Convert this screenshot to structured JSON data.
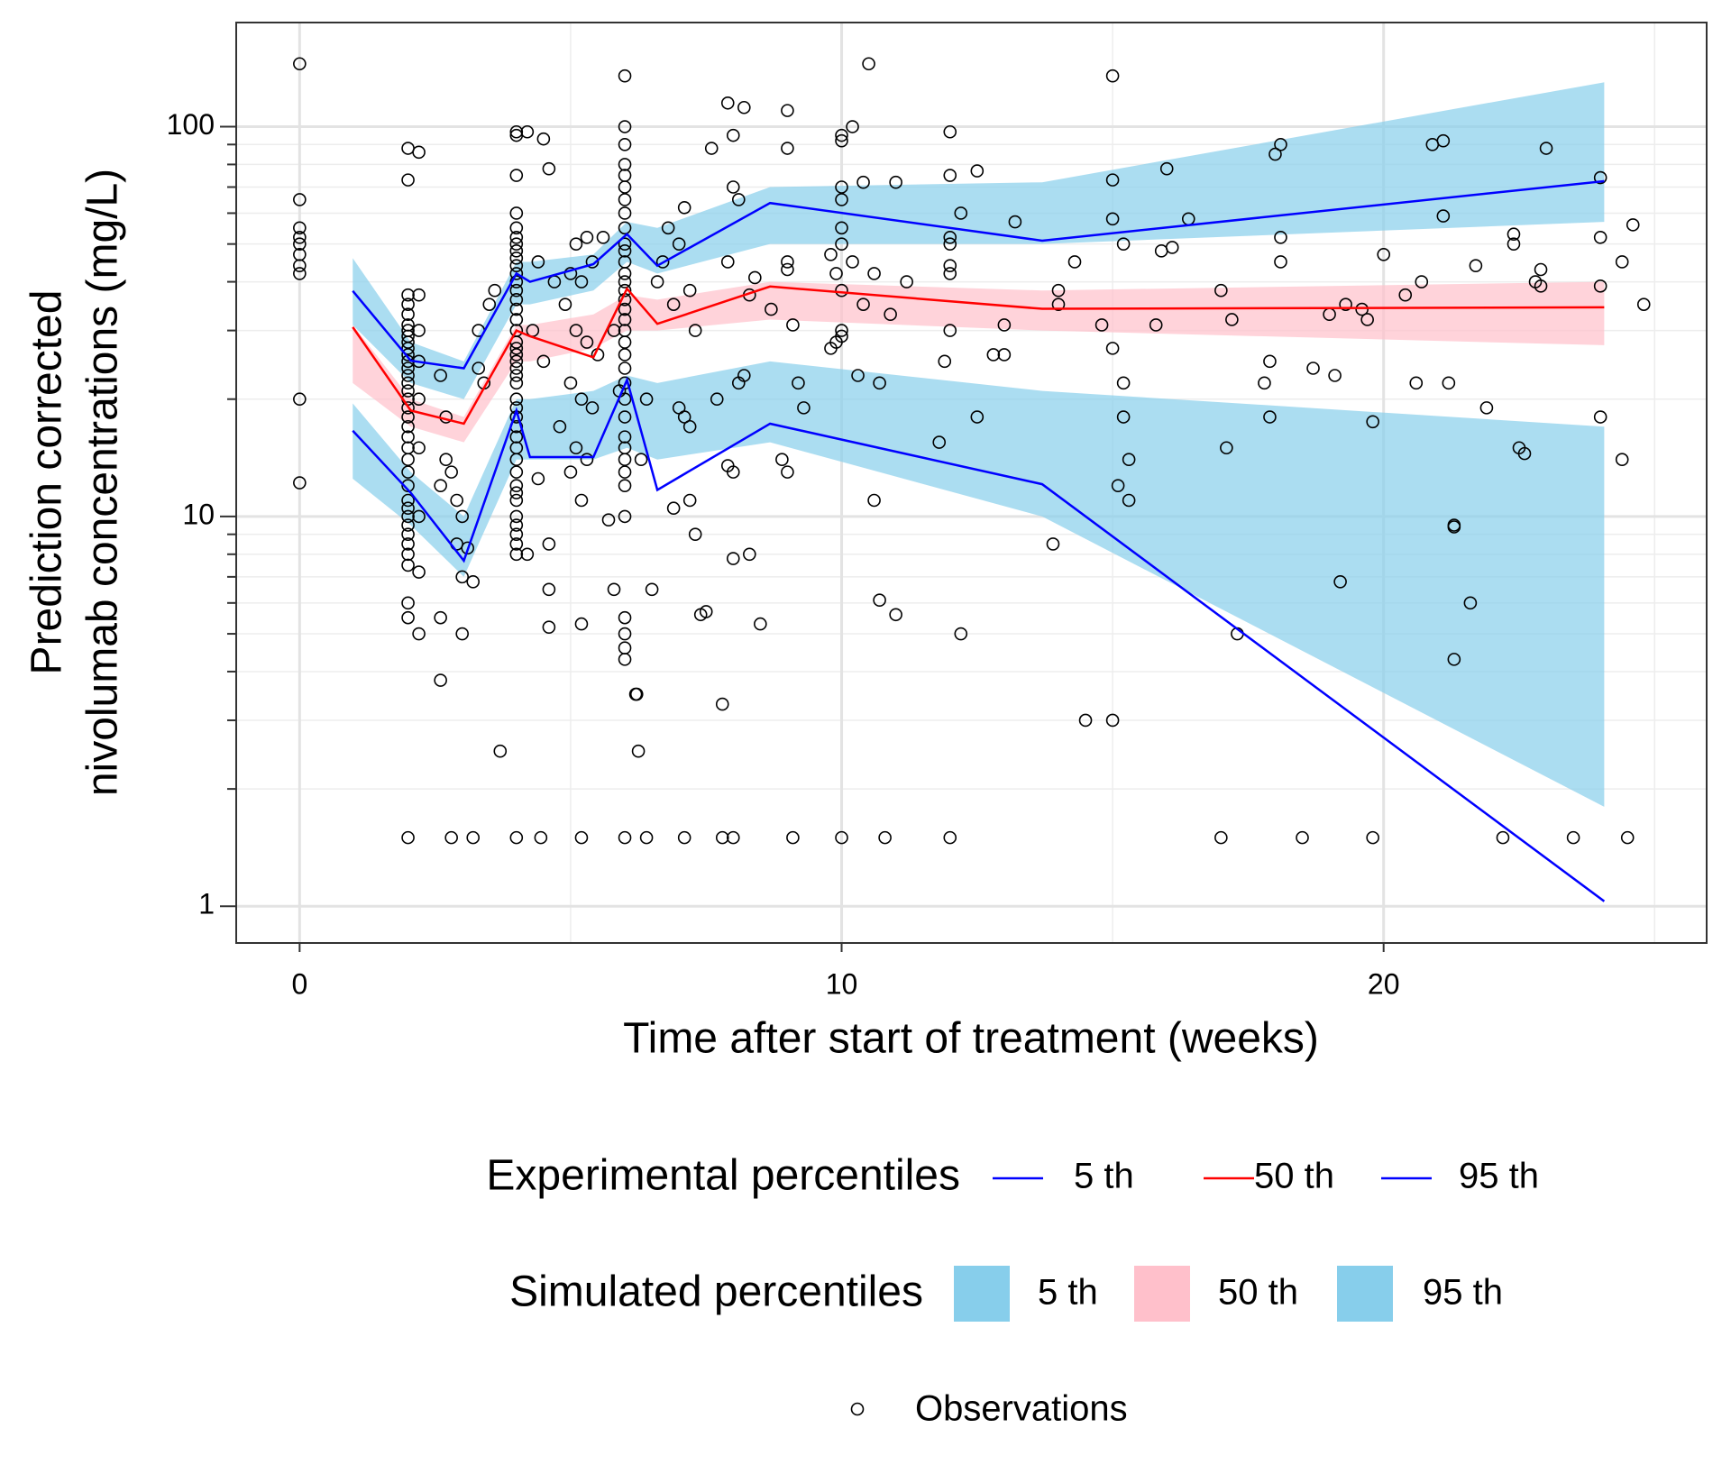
{
  "chart_data": {
    "type": "line",
    "xlabel": "Time after start of treatment (weeks)",
    "ylabel": [
      "Prediction corrected",
      "nivolumab concentrations (mg/L)"
    ],
    "xlim": [
      -1.17,
      25.96
    ],
    "ylim": [
      0.805,
      185
    ],
    "log_y": true,
    "grid": true,
    "xticks": [
      0,
      10,
      20
    ],
    "xminor_ticks": [
      5,
      15,
      25
    ],
    "yticks": [
      1,
      10,
      100
    ],
    "yminor_ticks": [
      2,
      3,
      4,
      5,
      6,
      7,
      8,
      9,
      20,
      30,
      40,
      50,
      60,
      70,
      80,
      90
    ],
    "bins_x": [
      0.98,
      2.05,
      3.03,
      4.0,
      4.25,
      5.42,
      6.04,
      6.6,
      8.68,
      13.7,
      24.07
    ],
    "experimental": {
      "title": "Experimental percentiles",
      "series": [
        {
          "name": "5 th",
          "color": "#0000ff",
          "values": [
            16.6,
            11.5,
            7.7,
            18.7,
            14.2,
            14.2,
            22.4,
            11.7,
            17.3,
            12.1,
            1.03
          ]
        },
        {
          "name": "50 th",
          "color": "#ff0000",
          "values": [
            30.6,
            18.7,
            17.3,
            30,
            29,
            25.6,
            38.4,
            31.2,
            38.9,
            34.1,
            34.4
          ]
        },
        {
          "name": "95 th",
          "color": "#0000ff",
          "values": [
            37.9,
            25.1,
            24,
            42,
            40,
            44.4,
            53,
            44,
            63.7,
            51,
            72.5
          ]
        }
      ]
    },
    "simulated": {
      "title": "Simulated percentiles",
      "series": [
        {
          "name": "5 th",
          "color": "#87ceeb",
          "low": [
            12.5,
            9.5,
            7,
            14,
            14,
            14,
            15,
            14,
            15.5,
            10,
            1.8
          ],
          "high": [
            19.5,
            13,
            10,
            20,
            20,
            21,
            23,
            22,
            25,
            21,
            17
          ]
        },
        {
          "name": "50 th",
          "color": "#ffc0cb",
          "low": [
            22,
            17,
            15.5,
            25,
            25,
            27,
            30,
            30,
            32,
            30,
            27.5
          ],
          "high": [
            31,
            20,
            18,
            31,
            31,
            33,
            37,
            36,
            40,
            38,
            40
          ]
        },
        {
          "name": "95 th",
          "color": "#87ceeb",
          "low": [
            31,
            22,
            20,
            35,
            35,
            38,
            45,
            42,
            50,
            50,
            57
          ],
          "high": [
            46,
            28,
            25,
            45,
            45,
            47,
            57,
            55,
            70,
            72,
            130
          ]
        }
      ]
    },
    "observations": {
      "name": "Observations",
      "x": [
        0,
        0,
        0,
        0,
        0,
        0,
        0,
        0,
        0,
        0,
        2,
        2,
        2,
        2,
        2,
        2,
        2,
        2,
        2,
        2,
        2,
        2,
        2,
        2,
        2,
        2,
        2,
        2,
        2,
        2,
        2,
        2,
        2,
        2,
        2,
        2,
        2,
        2,
        2,
        2,
        2,
        2,
        2,
        2,
        2,
        2,
        2.2,
        2.2,
        2.2,
        2.2,
        2.2,
        2.2,
        2.2,
        2.2,
        2.2,
        2.6,
        2.7,
        2.7,
        2.6,
        2.8,
        2.9,
        3.0,
        2.9,
        3.1,
        3.0,
        3.2,
        3.0,
        2.6,
        2.8,
        3.2,
        2.6,
        3.3,
        3.5,
        3.4,
        3.7,
        3.6,
        3.3,
        4,
        4,
        4,
        4,
        4,
        4,
        4,
        4,
        4,
        4,
        4,
        4,
        4,
        4,
        4,
        4,
        4,
        4,
        4,
        4,
        4,
        4,
        4,
        4,
        4,
        4,
        4,
        4,
        4,
        4,
        4,
        4,
        4,
        4,
        4,
        4,
        4,
        4,
        4,
        4,
        4,
        4.2,
        4.5,
        4.6,
        4.4,
        4.7,
        4.3,
        4.5,
        4.4,
        4.6,
        4.2,
        4.6,
        4.6,
        4.45,
        4.8,
        4.9,
        5.0,
        5.1,
        5.3,
        5.4,
        5.2,
        5.1,
        5.3,
        5.0,
        5.2,
        5.4,
        5.1,
        5.3,
        5.0,
        5.2,
        5.2,
        5.2,
        5.6,
        5.5,
        5.8,
        5.7,
        5.9,
        5.8,
        6,
        6,
        6,
        6,
        6,
        6,
        6,
        6,
        6,
        6,
        6,
        6,
        6,
        6,
        6,
        6,
        6,
        6,
        6,
        6,
        6,
        6,
        6,
        6,
        6,
        6,
        6,
        6,
        6,
        6,
        6,
        6,
        6,
        6,
        6,
        6,
        6.2,
        6.22,
        6.25,
        6.4,
        6.3,
        6.5,
        6.4,
        6.6,
        6.7,
        6.9,
        7.0,
        6.8,
        7.1,
        7.2,
        7.3,
        7.0,
        7.1,
        7.2,
        6.9,
        7.2,
        7.3,
        7.4,
        7.5,
        7.8,
        7.1,
        7.8,
        8.0,
        7.6,
        7.9,
        8.2,
        8.0,
        8.0,
        8.1,
        7.9,
        8.3,
        8.1,
        8.2,
        8.0,
        7.9,
        8.0,
        8.3,
        8.5,
        7.7,
        8.4,
        8.7,
        9.0,
        9.0,
        9.0,
        9.0,
        9.1,
        9.2,
        9.3,
        8.9,
        9.0,
        9.1,
        10.0,
        10.0,
        10.2,
        10.0,
        10.0,
        10.0,
        10.0,
        10.2,
        9.9,
        10.0,
        10.0,
        10.0,
        9.9,
        9.8,
        10.0,
        9.8,
        10.5,
        10.4,
        10.6,
        10.4,
        10.9,
        10.3,
        10.7,
        10.6,
        10.7,
        11.0,
        10.8,
        11.0,
        11.2,
        11.8,
        12.0,
        12.0,
        12.2,
        12.0,
        12.0,
        12.0,
        12.0,
        12.0,
        11.9,
        12.2,
        12.0,
        12.5,
        12.5,
        12.8,
        13.0,
        13.0,
        13.2,
        14.0,
        14.0,
        13.9,
        14.5,
        15.0,
        15.0,
        14.3,
        15.0,
        15.0,
        15.2,
        14.8,
        15.0,
        15.2,
        15.2,
        15.1,
        15.3,
        15.3,
        15.8,
        16.0,
        15.9,
        16.1,
        16.4,
        17,
        17.2,
        17.1,
        17.3,
        17,
        17.8,
        17.9,
        17.9,
        18,
        18.1,
        18.1,
        18.1,
        18.5,
        18.7,
        19,
        19.1,
        19.2,
        19.3,
        19.6,
        19.7,
        19.8,
        19.8,
        20,
        20.4,
        20.6,
        20.7,
        20.9,
        21.1,
        21.1,
        21.2,
        21.3,
        21.3,
        21.3,
        21.6,
        21.9,
        21.7,
        22.4,
        22.4,
        22.5,
        22.6,
        22.8,
        22.9,
        22.2,
        22.9,
        23.0,
        23.5,
        24.0,
        24.0,
        24.0,
        24.0,
        24.4,
        24.4,
        24.6,
        24.8,
        24.5
      ],
      "values": [
        145,
        65,
        55,
        52,
        50,
        47,
        44,
        42,
        20,
        12.2,
        88,
        73,
        37,
        35,
        33,
        31,
        30,
        29,
        28,
        27,
        26,
        25,
        24,
        23,
        22,
        21,
        20,
        19,
        18,
        17,
        16,
        15,
        14,
        13,
        12,
        11,
        10.5,
        10,
        9.5,
        9,
        8.5,
        8,
        7.5,
        6,
        5.5,
        1.5,
        86,
        37,
        30,
        25,
        20,
        15,
        10,
        7.2,
        5,
        23,
        18,
        14,
        12,
        13,
        11,
        10,
        8.5,
        8.3,
        7,
        6.8,
        5,
        3.8,
        1.5,
        1.5,
        5.5,
        24,
        35,
        22,
        2.5,
        38,
        30,
        97,
        95,
        75,
        60,
        55,
        52,
        50,
        48,
        46,
        44,
        42,
        40,
        38,
        36,
        34,
        32,
        30,
        28,
        27,
        26,
        25,
        24,
        23,
        22,
        20,
        19,
        18,
        17,
        16,
        15,
        14,
        13,
        12,
        11.5,
        11,
        10,
        9.5,
        9,
        8.5,
        8,
        1.5,
        97,
        93,
        78,
        45,
        40,
        30,
        25,
        12.5,
        8.5,
        8,
        6.5,
        5.2,
        1.5,
        17,
        35,
        42,
        50,
        52,
        45,
        40,
        30,
        28,
        22,
        20,
        19,
        15,
        14,
        13,
        11,
        5.3,
        1.5,
        52,
        26,
        30,
        9.8,
        21,
        6.5,
        135,
        100,
        90,
        80,
        75,
        70,
        65,
        60,
        55,
        50,
        48,
        45,
        42,
        40,
        38,
        36,
        34,
        32,
        30,
        28,
        26,
        24,
        22,
        20,
        18,
        16,
        15,
        14,
        13,
        12,
        10,
        5.5,
        5,
        4.6,
        4.3,
        1.5,
        3.5,
        3.5,
        2.5,
        1.5,
        14,
        6.5,
        20,
        40,
        45,
        35,
        50,
        55,
        62,
        38,
        30,
        19,
        18,
        17,
        10.5,
        11,
        9,
        5.6,
        5.7,
        3.3,
        1.5,
        1.5,
        1.5,
        88,
        115,
        112,
        95,
        70,
        65,
        45,
        37,
        22,
        23,
        13,
        13.5,
        7.8,
        8,
        5.3,
        20,
        41,
        34,
        110,
        88,
        45,
        43,
        31,
        22,
        19,
        14,
        13,
        1.5,
        95,
        92,
        100,
        70,
        65,
        55,
        50,
        45,
        42,
        38,
        30,
        29,
        28,
        27,
        1.5,
        47,
        145,
        72,
        42,
        35,
        33,
        23,
        22,
        11,
        6.1,
        5.6,
        1.5,
        72,
        40,
        15.5,
        97,
        75,
        60,
        52,
        50,
        44,
        42,
        30,
        25,
        5,
        1.5,
        77,
        18,
        26,
        26,
        31,
        57,
        38,
        35,
        8.5,
        3,
        3,
        135,
        45,
        73,
        58,
        50,
        31,
        27,
        22,
        18,
        12,
        14,
        11,
        31,
        78,
        48,
        49,
        58,
        38,
        32,
        15,
        5,
        1.5,
        22,
        25,
        18,
        85,
        90,
        52,
        45,
        1.5,
        24,
        33,
        23,
        6.8,
        35,
        34,
        32,
        17.5,
        1.5,
        47,
        37,
        22,
        40,
        90,
        92,
        59,
        22,
        9.5,
        9.4,
        4.3,
        6,
        19,
        44,
        53,
        50,
        15,
        14.5,
        40,
        39,
        1.5,
        43,
        88,
        1.5,
        52,
        39,
        18,
        74,
        14,
        45,
        56,
        35,
        1.5
      ]
    }
  }
}
